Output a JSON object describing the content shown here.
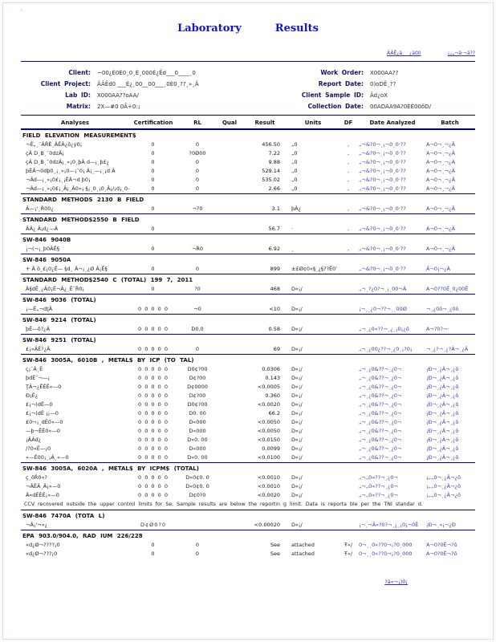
{
  "header": {
    "corner_mark": "·",
    "title_word1": "Laboratory",
    "title_word2": "Results",
    "link1": "ÂÂÊ¿ä¸__¿ä00",
    "link2": "¡„„¬ä·¬ä??"
  },
  "info": {
    "rows": [
      {
        "label_left": "Client:",
        "value_left": "~00¿È0È0¸0¸È¸000È¿Êd___0____¸0",
        "label_right": "Work Order:",
        "value_right": "X000AA??"
      },
      {
        "label_left": "Client Project:",
        "value_left": "ÂÂÊd0 ___È¿¸00__00___¸0È0¸??¸»¸Â",
        "label_right": "Report Date:",
        "value_right": "0)oDÊ¸??"
      },
      {
        "label_left": "Lab ID:",
        "value_left": "X000AA??oAA/",
        "label_right": "Client Sample ID:",
        "value_right": "Ãd¿oX"
      },
      {
        "label_left": "Matrix:",
        "value_left": "2X—#0 0Ã+0:¡",
        "label_right": "Collection Date:",
        "value_right": "00ADAA9A?0ÈÈ00ôD/"
      }
    ]
  },
  "columns": [
    "Analyses",
    "Certification",
    "RL",
    "Qual",
    "Result",
    "Units",
    "DF",
    "Date Analyzed",
    "Batch"
  ],
  "sections": [
    {
      "header": "FIELD ELEVATION MEASUREMENT$",
      "rows": [
        {
          "analyte": "¬Ê„¸¯ÂŘÊ¸ÂÊÂ¿ô¿ý0¡",
          "cert": "0",
          "rl": "0",
          "qual": "",
          "result": "456.50",
          "units": "„0",
          "df": ",",
          "date": "„¬&?0¬¸¡¬0¸0·??",
          "batch": "A¬0¬¸¬¿Â"
        },
        {
          "analyte": "çÂ D¸B¸¯0dzÂ¡",
          "cert": "0",
          "rl": "?0Ø00",
          "qual": "",
          "result": "7.22",
          "units": "„0",
          "df": ",",
          "date": "„¬&?0¬¸¡¬0¸0·??",
          "batch": "A¬0¬¸¬¿Â"
        },
        {
          "analyte": "çÂ D¸B¸¯0dzÂ¡¸»¡0¸þÂ d—¡¸þ£¿",
          "cert": "0",
          "rl": "0",
          "qual": "",
          "result": "9.88",
          "units": "„0",
          "df": ",",
          "date": "„¬&?0¬¸¡¬0¸0·??",
          "batch": "A¬0¬¸¬¿Â"
        },
        {
          "analyte": "þÊÂ¬0dþ0¸¡¸»¡0—¡¯0¡ Â¡¸—¡¸¡d Â",
          "cert": "0",
          "rl": "0",
          "qual": "",
          "result": "529.14",
          "units": "„0",
          "df": ",",
          "date": "„¬&?0¬¸¡¬0¸0·??",
          "batch": "A¬0¬¸¬¿Â"
        },
        {
          "analyte": "¬Âd—¡¸»¡0£¡¸¡ÊÂ¬d þ0¡",
          "cert": "0",
          "rl": "0",
          "qual": "",
          "result": "535.02",
          "units": "„0",
          "df": ",",
          "date": "„¬&?0¬¸¡¬0¸0·??",
          "batch": "A¬0¬¸¬¿Â"
        },
        {
          "analyte": "¬Âd—¡¸»¡0£¡¸Â¡¸Â0«¡ §¡¸0¸¡0¸Â¡/¡d¡¸0—¬¡d Â",
          "cert": "0",
          "rl": "0",
          "qual": "",
          "result": "2.66",
          "units": "„0",
          "df": ",",
          "date": "„¬&?0¬¸¡¬0¸0·??",
          "batch": "A¬0¬¸¬¿Â"
        }
      ]
    },
    {
      "header": "STANDARD METHODS 2130 B FIELD",
      "rows": [
        {
          "analyte": "Â—¡'¸Ř00¿",
          "cert": "0",
          "rl": "¬?0",
          "qual": "",
          "result": "3.1",
          "units": "þÂ¿",
          "df": ",",
          "date": "„¬&?0¬¸¡¬0¸0·??",
          "batch": "A¬0¬¸¬¿Â"
        }
      ]
    },
    {
      "header": "STANDARD METHOD$2550 B FIELD",
      "rows": [
        {
          "analyte": "ÂÂ¿ Â¡d¿—Â",
          "cert": "0",
          "rl": "",
          "qual": "",
          "result": "56.7",
          "units": "·",
          "df": ",",
          "date": "„¬&?0¬¸¡¬0¸0·??",
          "batch": "A¬0¬¸¬¿Â"
        }
      ]
    },
    {
      "header": "SW-846 9040B",
      "rows": [
        {
          "analyte": "¡¬(¬¡¸þ0ÂÊ§",
          "cert": "0",
          "rl": "¬Ř0",
          "qual": "",
          "result": "6.92",
          "units": "¸",
          "df": ",",
          "date": "„¬&?0¬¸¡¬0¸0·??",
          "batch": "A¬0¬¸¬¿Â"
        }
      ]
    },
    {
      "header": "SW-846 9050A",
      "rows": [
        {
          "analyte": "+ Â ô¸£¡0¿Ê— §d¸ Â¬¡¸¿Ø Â¡Ê§",
          "cert": "0",
          "rl": "0",
          "qual": "",
          "result": "899",
          "units": "±£Ø¢0«§¸¿§??Ê0'¡",
          "df": "",
          "date": "„¬&?0¬¸¡¬0¸0·??",
          "batch": "Â¬0¡¬¿Â"
        }
      ]
    },
    {
      "header": "STANDARD METHOD$2540 C (TOTAL) 199 7, 2011",
      "rows": [
        {
          "analyte": "Â§dÊ¸¿Â0¡Ê¬Â¿¸Ê¯Ř0¡",
          "cert": "0",
          "rl": "?0",
          "qual": "",
          "result": "468",
          "units": "D«¡/",
          "df": "",
          "date": "„¬¸?¿0?¬¸¡¸00¬Â",
          "batch": "A¬0??0Ê¸0¿00Ê"
        }
      ]
    },
    {
      "header": "SW-846 9036 (TOTAL)",
      "rows": [
        {
          "analyte": "¡—Ê„¬dţÂ",
          "cert": "0 0 0 0 0",
          "rl": "¬0",
          "qual": "",
          "result": "<10",
          "units": "D«¡/",
          "df": "",
          "date": "¡¬¸¸¿0¬??¬¸¸00Ø",
          "batch": "¬¸¿0ô¬¸¿0ô"
        }
      ]
    },
    {
      "header": "SW-846 9214 (TOTAL)",
      "rows": [
        {
          "analyte": "þÊ—ô?¿Â",
          "cert": "0 0 0 0 0",
          "rl": "D0.0",
          "qual": "",
          "result": "0.58",
          "units": "D«¡/",
          "df": "",
          "date": "„¬¸¿0«??¬¸¿¸¡0¡¿ô",
          "batch": "A¬?0?¬·"
        }
      ]
    },
    {
      "header": "SW-846 9251 (TOTAL)",
      "rows": [
        {
          "analyte": "£¡«ÂÊ?¿Â",
          "cert": "0 0 0 0 0",
          "rl": "0",
          "qual": "",
          "result": "69",
          "units": "D«¡/",
          "df": "",
          "date": "„¬¸¿00¿??¬¸¿0¸¡?0¡",
          "batch": "¬¸¿?¬¸¿?Â¬¸¿Â"
        }
      ]
    },
    {
      "header": "SW-846 3005A, 6010B , METAL$ BY ICP (TO TAL)",
      "rows": [
        {
          "analyte": "ç¡¯Â¸Ê",
          "cert": "0 0 0 0 0",
          "rl": "D0¢?00",
          "qual": "",
          "result": "0.0306",
          "units": "D«¡/",
          "df": "",
          "date": "„¬¸¿0&??¬¸¿0¬",
          "batch": "¡Đ¬¸¿Â¬¸¿ô"
        },
        {
          "analyte": "þdÊ¯¬—¡",
          "cert": "0 0 0 0 0",
          "rl": "D¢?00",
          "qual": "",
          "result": "0.143",
          "units": "D«¡/",
          "df": "",
          "date": "„¬¸¿0&??¬¸¿0¬",
          "batch": "¡Đ¬¸¿Â¬¸¿ô"
        },
        {
          "analyte": "ŢÂ¬¿ÊÊÊ«—0",
          "cert": "0 0 0 0 0",
          "rl": "D¢0000",
          "qual": "",
          "result": "<0.0005",
          "units": "D«¡/",
          "df": "",
          "date": "„¬¸¿0&??¬¸¿0¬",
          "batch": "¡Đ¬¸¿Â¬¸¿ô"
        },
        {
          "analyte": "Đ¡Ê¿",
          "cert": "0 0 0 0 0",
          "rl": "D¢?00",
          "qual": "",
          "result": "0.360",
          "units": "D«¡/",
          "df": "",
          "date": "„¬¸¿0&??¬¸¿0¬",
          "batch": "¡Đ¬¸¿Â¬¸¿ô"
        },
        {
          "analyte": "£¡¬(dÊ—0",
          "cert": "0 0 0 0 0",
          "rl": "D0¢?00",
          "qual": "",
          "result": "<0.0020",
          "units": "D«¡/",
          "df": "",
          "date": "„¬¸¿0&??¬¸¿0¬",
          "batch": "¡Đ¬¸¿Â¬¸¿ô"
        },
        {
          "analyte": "£¡¬(dÊ ¡¡—0",
          "cert": "0 0 0 0 0",
          "rl": "D0. 00",
          "qual": "",
          "result": "66.2",
          "units": "D«¡/",
          "df": "",
          "date": "„¬¸¿0&??¬¸¿0¬",
          "batch": "¡Đ¬¸¿Â¬¸¿ô"
        },
        {
          "analyte": "£0¬¡¸dÊ0«—0",
          "cert": "0 0 0 0 0",
          "rl": "D«000",
          "qual": "",
          "result": "<0.0050",
          "units": "D«¡/",
          "df": "",
          "date": "„¬¸¿0&??¬¸¿0¬",
          "batch": "¡Đ¬¸¿Â¬¸¿ô"
        },
        {
          "analyte": "—þ¬ÊÊ0«—0",
          "cert": "0 0 0 0 0",
          "rl": "D«000",
          "qual": "",
          "result": "<0.0050",
          "units": "D«¡/",
          "df": "",
          "date": "„¬¸¿0&??¬¸¿0¬",
          "batch": "¡Đ¬¸¿Â¬¸¿ô"
        },
        {
          "analyte": "¡ÂÂd¿",
          "cert": "0 0 0 0 0",
          "rl": "D«0. 00",
          "qual": "",
          "result": "<0.0150",
          "units": "D«¡/",
          "df": "",
          "date": "„¬¸¿0&??¬¸¿0¬",
          "batch": "¡Đ¬¸¿Â¬¸¿ô"
        },
        {
          "analyte": "/?0«Ê—¡0",
          "cert": "0 0 0 0 0",
          "rl": "D«000",
          "qual": "",
          "result": "0.0099",
          "units": "D«¡/",
          "df": "",
          "date": "„¬¸¿0&??¬¸¿0¬",
          "batch": "¡Đ¬¸¿Â¬¸¿ô"
        },
        {
          "analyte": "«—Ê00¡¸¡Â¸«—0",
          "cert": "0 0 0 0 0",
          "rl": "D«0. 00",
          "qual": "",
          "result": "<0.0100",
          "units": "D«¡/",
          "df": "",
          "date": "„¬¸¿0&??¬¸¿0¬",
          "batch": "¡Đ¬¸¿Â¬¸¿ô"
        }
      ]
    },
    {
      "header": "SW-846 3005A, 6020A , METAL$ BY ICPM$ (TOTAL)",
      "rows": [
        {
          "analyte": "ç¸ôŘ0«?",
          "cert": "0 0 0 0 0",
          "rl": "D«0¢0. 0",
          "qual": "",
          "result": "<0.0010",
          "units": "D«¡/",
          "df": "",
          "date": "„¬„0«??¬¸¿0¬",
          "batch": "¡„„0¬¸¿Â¬¿ô"
        },
        {
          "analyte": "¬ÂÊÂ¸Â¡«—0",
          "cert": "0 0 0 0 0",
          "rl": "D«0¢0. 0",
          "qual": "",
          "result": "<0.0010",
          "units": "D«¡/",
          "df": "",
          "date": "„¬„0«??¬¸¿0¬",
          "batch": "¡„„0¬¸¿Â¬¿ô"
        },
        {
          "analyte": "Â«dÊÊÊ¡«—0",
          "cert": "0 0 0 0 0",
          "rl": "D¢0?0",
          "qual": "",
          "result": "<0.0020",
          "units": "D«¡/",
          "df": "",
          "date": "„¬„0«??¬¸¿0¬",
          "batch": "¡„„0¬¸¿Â¬¿ô"
        }
      ],
      "note": "CCV recovered outside the upper control limits for Se. Sample results are below the reportin g limit. Data is reporta ble per the TNI standar d."
    },
    {
      "header": "SW-846 7470A (TOTA L)",
      "rows": [
        {
          "analyte": "¬Â¡'¬«¿",
          "cert": "D¢Ø0?0",
          "rl": "",
          "qual": "",
          "result": "<0.00020",
          "units": "D«¡/",
          "df": "",
          "date": "¡¬¸¬Â«?0?¬¸¿¸¡0¡¬0Ê",
          "batch": "¡Đ¬¸«¡¬¿Đ"
        }
      ]
    },
    {
      "header": "EPA 903.0/904.0, RAD IUM 226/228",
      "rows": [
        {
          "analyte": "«d¿Ø¬????¡0",
          "cert": "0",
          "rl": "0",
          "qual": "",
          "result": "See",
          "units": "attached",
          "df": "Ŧ«/",
          "date": "0¬¸¸0«??0¬¡?0¸000",
          "batch": "A¬0?0Ê¬?ô"
        },
        {
          "analyte": "«d¿Ø¬???¡0",
          "cert": "0",
          "rl": "0",
          "qual": "",
          "result": "See",
          "units": "attached",
          "df": "Ŧ«/",
          "date": "0¬¸¸0«??0¬¡?0¸000",
          "batch": "A¬0?0Ê¬?ô"
        }
      ]
    }
  ],
  "footer": {
    "text": "?ä«¬¡)0¡"
  }
}
